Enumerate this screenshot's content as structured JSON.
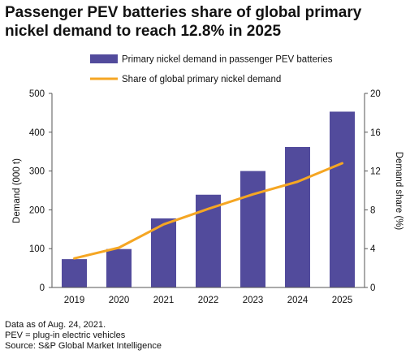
{
  "title": "Passenger PEV batteries share of global primary nickel demand to reach 12.8% in 2025",
  "footnotes": [
    "Data as of Aug. 24, 2021.",
    "PEV = plug-in electric vehicles",
    "Source: S&P Global Market Intelligence"
  ],
  "colors": {
    "bar": "#524b9c",
    "line": "#f5a623",
    "axis": "#555555"
  },
  "chart_data": {
    "type": "bar",
    "categories": [
      "2019",
      "2020",
      "2021",
      "2022",
      "2023",
      "2024",
      "2025"
    ],
    "series": [
      {
        "name": "Primary nickel demand in passenger PEV batteries",
        "type": "bar",
        "axis": "left",
        "values": [
          73,
          99,
          178,
          239,
          300,
          362,
          453
        ]
      },
      {
        "name": "Share of global primary nickel demand",
        "type": "line",
        "axis": "right",
        "values": [
          3.0,
          4.1,
          6.5,
          8.1,
          9.6,
          10.9,
          12.8
        ]
      }
    ],
    "ylabel": "Demand (000 t)",
    "y2label": "Demand share (%)",
    "ylim": [
      0,
      500
    ],
    "y2lim": [
      0,
      20
    ],
    "yticks": [
      0,
      100,
      200,
      300,
      400,
      500
    ],
    "y2ticks": [
      0,
      4,
      8,
      12,
      16,
      20
    ],
    "legend_position": "top",
    "grid": false
  }
}
